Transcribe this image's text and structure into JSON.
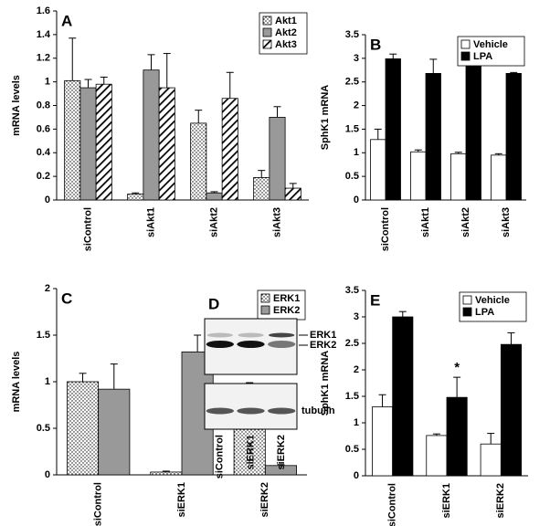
{
  "chart_data": [
    {
      "type": "bar",
      "panel": "A",
      "ylabel": "mRNA levels",
      "categories": [
        "siControl",
        "siAkt1",
        "siAkt2",
        "siAkt3"
      ],
      "series": [
        {
          "name": "Akt1",
          "color": "#ffffff",
          "pattern": "dots",
          "values": [
            1.01,
            0.05,
            0.65,
            0.19
          ],
          "errors": [
            0.36,
            0.01,
            0.11,
            0.06
          ]
        },
        {
          "name": "Akt2",
          "color": "#999999",
          "pattern": null,
          "values": [
            0.95,
            1.1,
            0.06,
            0.7
          ],
          "errors": [
            0.07,
            0.13,
            0.01,
            0.09
          ]
        },
        {
          "name": "Akt3",
          "color": "#ffffff",
          "pattern": "hatch",
          "values": [
            0.98,
            0.95,
            0.86,
            0.1
          ],
          "errors": [
            0.06,
            0.29,
            0.22,
            0.04
          ]
        }
      ],
      "ylim": [
        0,
        1.6
      ],
      "yticks": [
        0,
        0.2,
        0.4,
        0.6,
        0.8,
        1,
        1.2,
        1.4,
        1.6
      ],
      "legend": "upper right"
    },
    {
      "type": "bar",
      "panel": "B",
      "ylabel": "SphK1 mRNA",
      "categories": [
        "siControl",
        "siAkt1",
        "siAkt2",
        "siAkt3"
      ],
      "series": [
        {
          "name": "Vehicle",
          "color": "#ffffff",
          "pattern": null,
          "values": [
            1.28,
            1.02,
            0.98,
            0.95
          ],
          "errors": [
            0.22,
            0.04,
            0.03,
            0.03
          ]
        },
        {
          "name": "LPA",
          "color": "#000000",
          "pattern": null,
          "values": [
            2.99,
            2.68,
            2.9,
            2.68
          ],
          "errors": [
            0.1,
            0.3,
            0.17,
            0.02
          ]
        }
      ],
      "ylim": [
        0,
        3.5
      ],
      "yticks": [
        0,
        0.5,
        1,
        1.5,
        2,
        2.5,
        3,
        3.5
      ],
      "legend": "upper right"
    },
    {
      "type": "bar",
      "panel": "C",
      "ylabel": "mRNA levels",
      "categories": [
        "siControl",
        "siERK1",
        "siERK2"
      ],
      "series": [
        {
          "name": "ERK1",
          "color": "#ffffff",
          "pattern": "dots",
          "values": [
            1.0,
            0.03,
            0.9
          ],
          "errors": [
            0.09,
            0.01,
            0.09
          ]
        },
        {
          "name": "ERK2",
          "color": "#999999",
          "pattern": null,
          "values": [
            0.92,
            1.32,
            0.1
          ],
          "errors": [
            0.27,
            0.18,
            0.01
          ]
        }
      ],
      "ylim": [
        0,
        2
      ],
      "yticks": [
        0,
        0.5,
        1,
        1.5,
        2
      ],
      "legend": "upper right"
    },
    {
      "type": "blot",
      "panel": "D",
      "categories": [
        "siControl",
        "siERK1",
        "siERK2"
      ],
      "bands": [
        "ERK1",
        "ERK2"
      ],
      "loading_control": "tubulin"
    },
    {
      "type": "bar",
      "panel": "E",
      "ylabel": "SphK1 mRNA",
      "categories": [
        "siControl",
        "siERK1",
        "siERK2"
      ],
      "series": [
        {
          "name": "Vehicle",
          "color": "#ffffff",
          "pattern": null,
          "values": [
            1.3,
            0.76,
            0.6
          ],
          "errors": [
            0.23,
            0.03,
            0.2
          ]
        },
        {
          "name": "LPA",
          "color": "#000000",
          "pattern": null,
          "values": [
            3.0,
            1.48,
            2.48
          ],
          "errors": [
            0.1,
            0.38,
            0.22
          ]
        }
      ],
      "ylim": [
        0,
        3.5
      ],
      "yticks": [
        0,
        0.5,
        1,
        1.5,
        2,
        2.5,
        3,
        3.5
      ],
      "legend": "upper right",
      "annotations": [
        {
          "text": "*",
          "category": "siERK1",
          "series": "LPA"
        }
      ]
    }
  ]
}
